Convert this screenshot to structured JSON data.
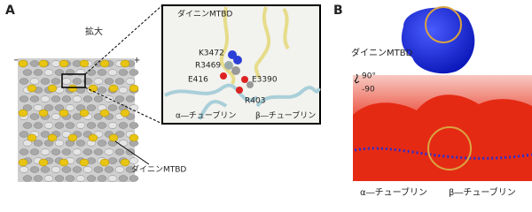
{
  "panel_a": {
    "label": "A",
    "zoom_label": "拡大",
    "minus": "−",
    "plus": "+",
    "inset": {
      "title": "ダイニンMTBD",
      "residues": [
        "K3472",
        "R3469",
        "E416",
        "E3390",
        "R403"
      ],
      "alpha": "α―チューブリン",
      "beta": "β―チューブリン"
    },
    "mtbd_label": "ダイニンMTBD"
  },
  "panel_b": {
    "label": "B",
    "mtbd_label": "ダイニンMTBD",
    "rotation": [
      "90°",
      "-90"
    ],
    "alpha": "α―チューブリン",
    "beta": "β―チューブリン"
  }
}
